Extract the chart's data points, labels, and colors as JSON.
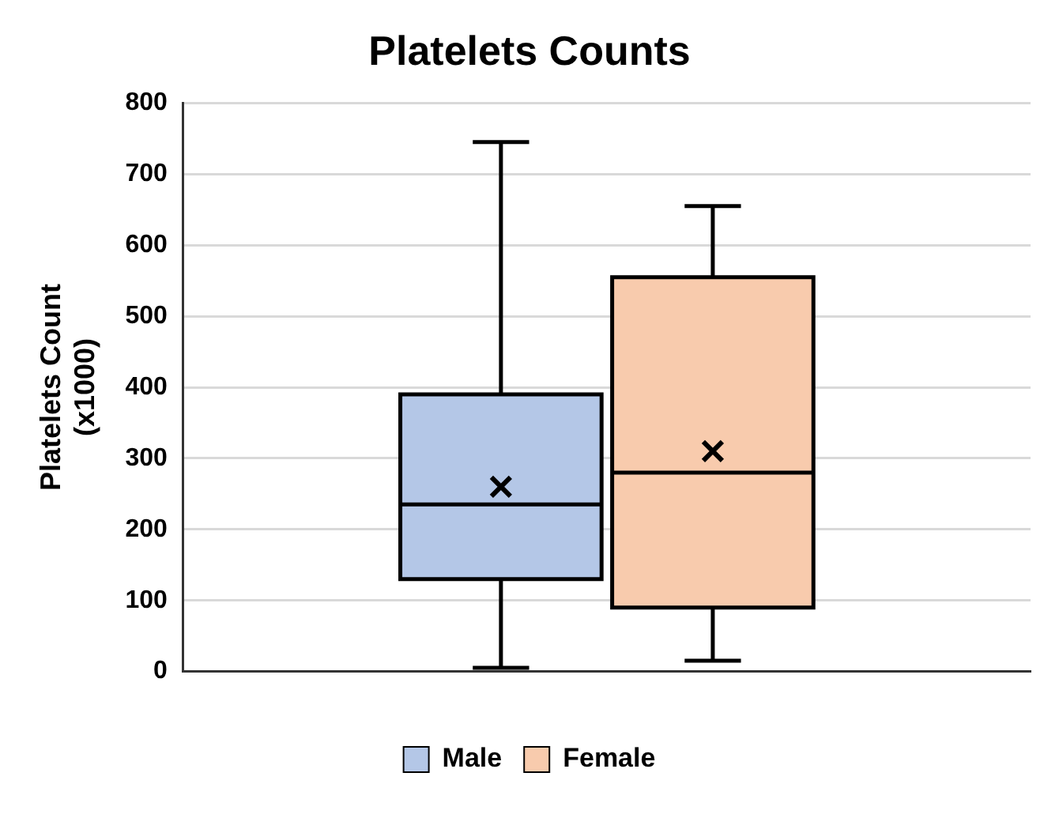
{
  "chart_data": {
    "type": "box",
    "title": "Platelets Counts",
    "ylabel": "Platelets Count (x1000)",
    "categories": [
      null
    ],
    "series": [
      {
        "name": "Male",
        "color": "#b4c7e7",
        "boxes": [
          {
            "low": 5,
            "q1": 130,
            "median": 235,
            "q3": 390,
            "high": 745,
            "mean": 260
          }
        ]
      },
      {
        "name": "Female",
        "color": "#f8cbad",
        "boxes": [
          {
            "low": 15,
            "q1": 90,
            "median": 280,
            "q3": 555,
            "high": 655,
            "mean": 310
          }
        ]
      }
    ],
    "ylim": [
      0,
      800
    ],
    "yticks": [
      0,
      100,
      200,
      300,
      400,
      500,
      600,
      700,
      800
    ],
    "grid": "y",
    "legend": "bottom",
    "marker": "cross"
  }
}
